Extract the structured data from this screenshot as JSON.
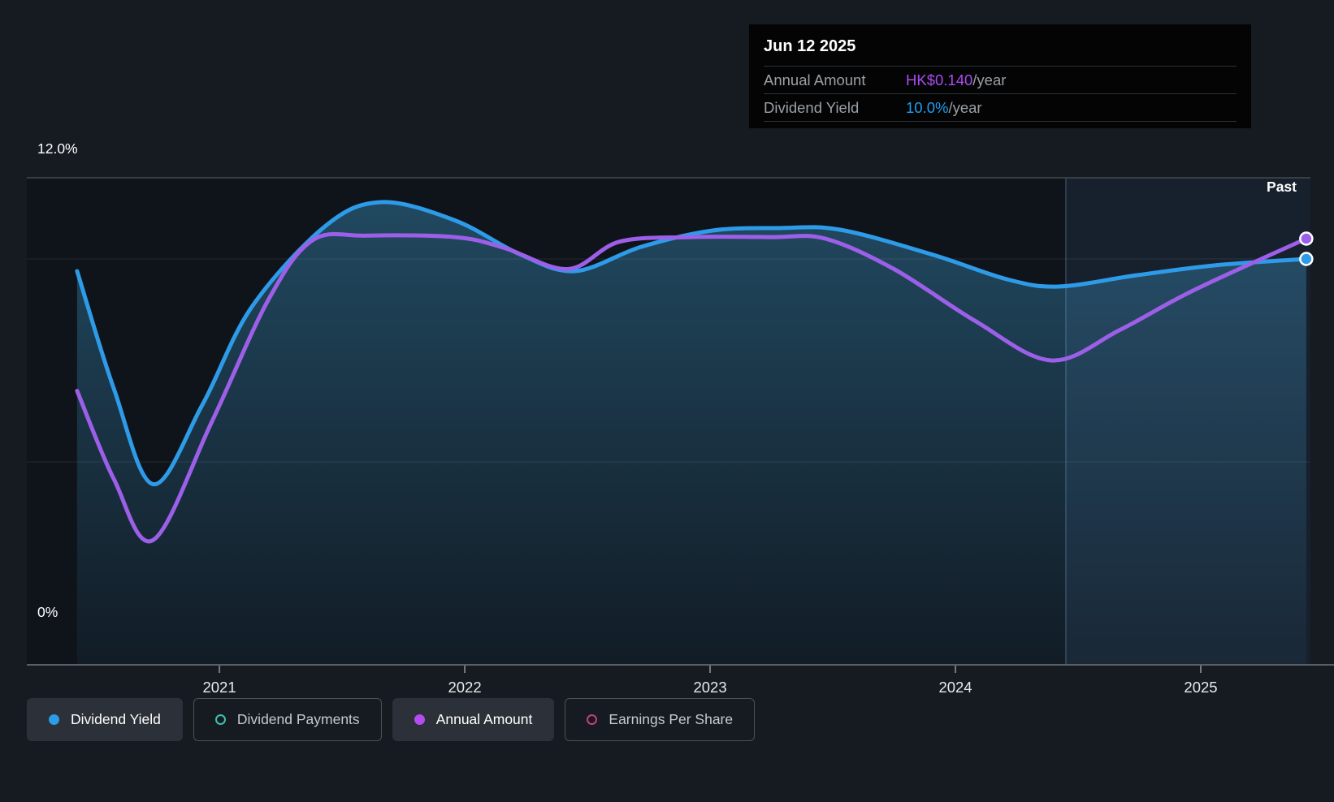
{
  "tooltip": {
    "date": "Jun 12 2025",
    "rows": [
      {
        "label": "Annual Amount",
        "value": "HK$0.140",
        "suffix": "/year",
        "color": "#a94bf2"
      },
      {
        "label": "Dividend Yield",
        "value": "10.0%",
        "suffix": "/year",
        "color": "#1f9ef0"
      }
    ]
  },
  "labels": {
    "y_top": "12.0%",
    "y_bottom": "0%",
    "past": "Past"
  },
  "legend": [
    {
      "label": "Dividend Yield",
      "color": "#2b9ce8",
      "style": "filled",
      "active": true
    },
    {
      "label": "Dividend Payments",
      "color": "#3fc1ad",
      "style": "ring",
      "active": false
    },
    {
      "label": "Annual Amount",
      "color": "#b44cf0",
      "style": "filled",
      "active": true
    },
    {
      "label": "Earnings Per Share",
      "color": "#c2417f",
      "style": "ring",
      "active": false
    }
  ],
  "colors": {
    "background": "#161b22",
    "plot_background": "#0f141b",
    "yield_line": "#2e9be8",
    "amount_line": "#9c5fe8",
    "fill_top": "rgba(52,130,172,0.48)",
    "fill_bottom": "rgba(52,130,172,0.07)",
    "past_band": "rgba(96,152,210,0.10)",
    "past_band_edge": "rgba(130,175,225,0.30)",
    "grid_top": "#454a51",
    "grid_minor": "rgba(255,255,255,0.09)",
    "axis_line": "#5a5f66",
    "tick_mark": "#757a81",
    "tick_text": "#e8eaec",
    "marker_stroke": "#ffffff"
  },
  "chart_data": {
    "type": "line",
    "title": "Dividend history chart",
    "x_domain": [
      2020.215,
      2025.447
    ],
    "x_ticks": [
      2021,
      2022,
      2023,
      2024,
      2025
    ],
    "past_band_start": 2024.45,
    "yield_axis": {
      "min": 0,
      "max": 12,
      "unit": "%",
      "gridlines": [
        5,
        10
      ],
      "top_gridline": 12
    },
    "amount_axis": {
      "min": 0,
      "max": 0.16,
      "unit": "HK$"
    },
    "series": [
      {
        "name": "Dividend Yield",
        "axis": "yield",
        "unit": "%/year",
        "fill": true,
        "end_value": "10.0%",
        "points": [
          [
            2020.42,
            9.7
          ],
          [
            2020.57,
            6.8
          ],
          [
            2020.73,
            4.45
          ],
          [
            2020.93,
            6.4
          ],
          [
            2021.13,
            8.8
          ],
          [
            2021.43,
            10.8
          ],
          [
            2021.66,
            11.4
          ],
          [
            2021.96,
            10.95
          ],
          [
            2022.23,
            10.1
          ],
          [
            2022.45,
            9.7
          ],
          [
            2022.72,
            10.3
          ],
          [
            2023.01,
            10.7
          ],
          [
            2023.28,
            10.76
          ],
          [
            2023.53,
            10.72
          ],
          [
            2023.91,
            10.1
          ],
          [
            2024.21,
            9.5
          ],
          [
            2024.42,
            9.32
          ],
          [
            2024.74,
            9.6
          ],
          [
            2025.07,
            9.85
          ],
          [
            2025.43,
            10.0
          ]
        ]
      },
      {
        "name": "Annual Amount",
        "axis": "amount",
        "unit": "HK$/year",
        "fill": false,
        "end_value": "HK$0.140",
        "points": [
          [
            2020.42,
            0.09
          ],
          [
            2020.57,
            0.061
          ],
          [
            2020.73,
            0.041
          ],
          [
            2020.97,
            0.08
          ],
          [
            2021.2,
            0.12
          ],
          [
            2021.38,
            0.1395
          ],
          [
            2021.6,
            0.141
          ],
          [
            2021.96,
            0.1405
          ],
          [
            2022.16,
            0.137
          ],
          [
            2022.42,
            0.13
          ],
          [
            2022.63,
            0.139
          ],
          [
            2022.92,
            0.1405
          ],
          [
            2023.25,
            0.1405
          ],
          [
            2023.47,
            0.14
          ],
          [
            2023.75,
            0.13
          ],
          [
            2024.08,
            0.113
          ],
          [
            2024.39,
            0.1
          ],
          [
            2024.67,
            0.11
          ],
          [
            2024.97,
            0.123
          ],
          [
            2025.43,
            0.14
          ]
        ]
      }
    ]
  }
}
